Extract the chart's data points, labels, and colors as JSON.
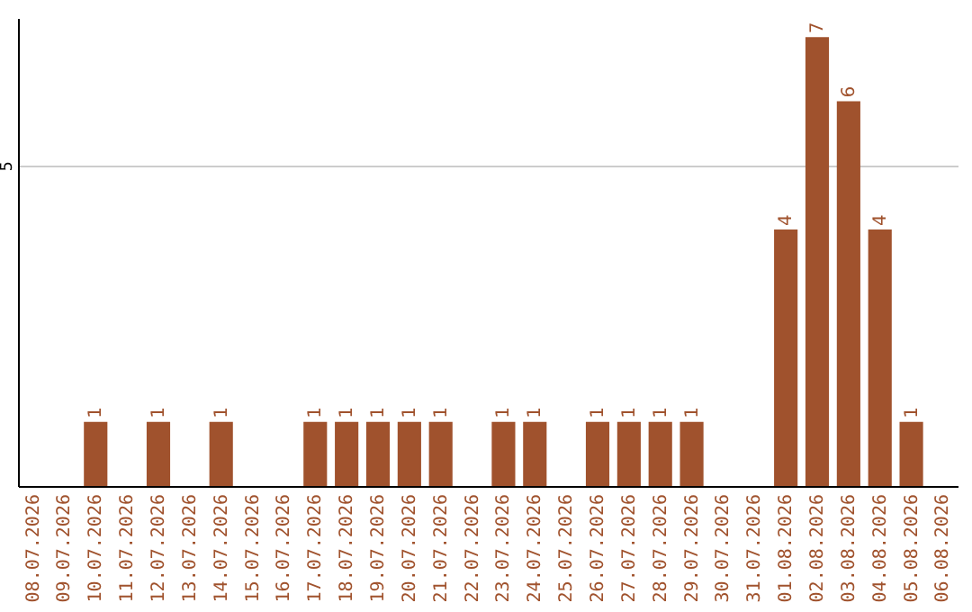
{
  "chart_data": {
    "type": "bar",
    "categories": [
      "08.07.2026",
      "09.07.2026",
      "10.07.2026",
      "11.07.2026",
      "12.07.2026",
      "13.07.2026",
      "14.07.2026",
      "15.07.2026",
      "16.07.2026",
      "17.07.2026",
      "18.07.2026",
      "19.07.2026",
      "20.07.2026",
      "21.07.2026",
      "22.07.2026",
      "23.07.2026",
      "24.07.2026",
      "25.07.2026",
      "26.07.2026",
      "27.07.2026",
      "28.07.2026",
      "29.07.2026",
      "30.07.2026",
      "31.07.2026",
      "01.08.2026",
      "02.08.2026",
      "03.08.2026",
      "04.08.2026",
      "05.08.2026",
      "06.08.2026"
    ],
    "values": [
      null,
      null,
      1,
      null,
      1,
      null,
      1,
      null,
      null,
      1,
      1,
      1,
      1,
      1,
      null,
      1,
      1,
      null,
      1,
      1,
      1,
      1,
      null,
      null,
      4,
      7,
      6,
      4,
      1,
      null
    ],
    "color": "#a0522d",
    "ylim": [
      0,
      7.3
    ],
    "yticks": [
      5
    ],
    "grid": "y",
    "data_labels": true
  }
}
